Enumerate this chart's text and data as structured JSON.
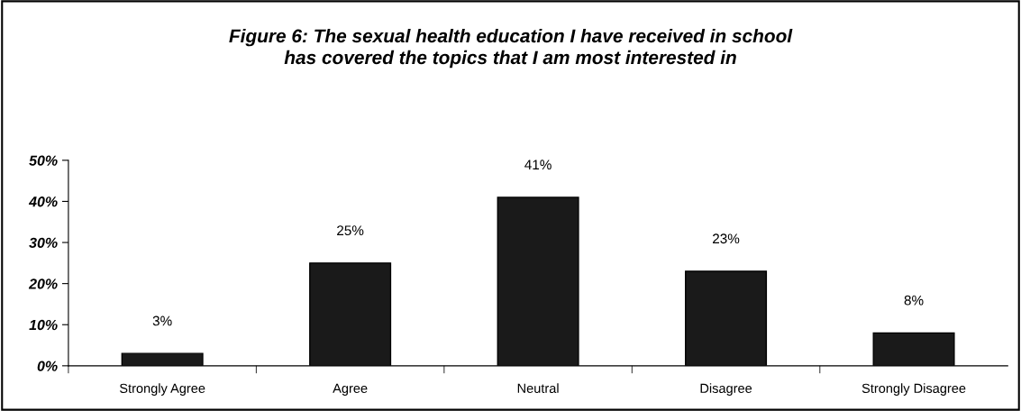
{
  "chart_data": {
    "type": "bar",
    "title": "Figure 6: The sexual health education I have received in school\nhas covered the topics that I am most interested in",
    "categories": [
      "Strongly Agree",
      "Agree",
      "Neutral",
      "Disagree",
      "Strongly Disagree"
    ],
    "values": [
      3,
      25,
      41,
      23,
      8
    ],
    "value_labels": [
      "3%",
      "25%",
      "41%",
      "23%",
      "8%"
    ],
    "color": "#1a1a1a",
    "ylim": [
      0,
      50
    ],
    "yticks": [
      {
        "value": 0,
        "label": "0%"
      },
      {
        "value": 10,
        "label": "10%"
      },
      {
        "value": 20,
        "label": "20%"
      },
      {
        "value": 30,
        "label": "30%"
      },
      {
        "value": 40,
        "label": "40%"
      },
      {
        "value": 50,
        "label": "50%"
      }
    ],
    "grid": false,
    "legend": false
  }
}
